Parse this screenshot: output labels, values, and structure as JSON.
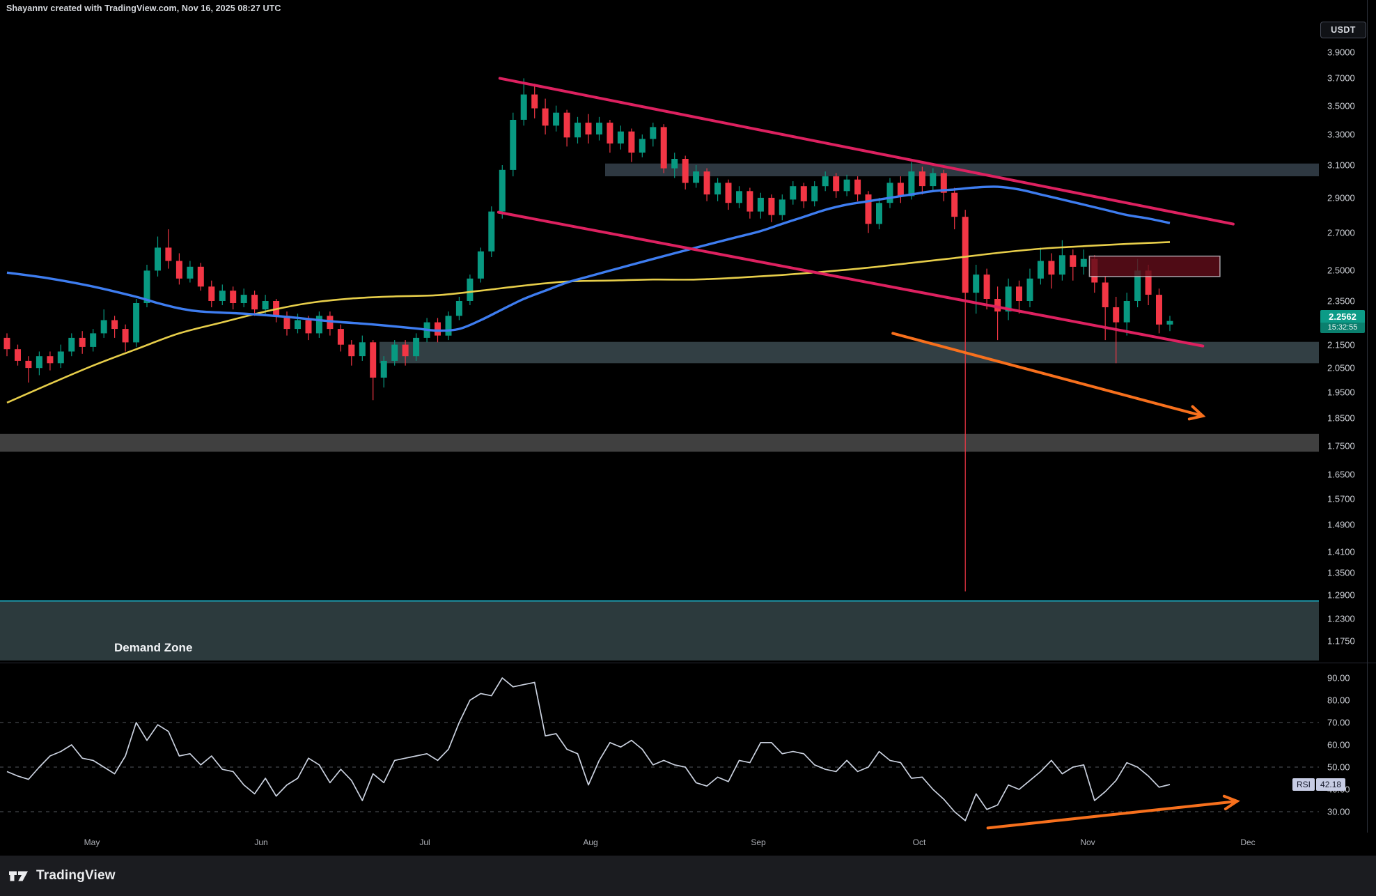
{
  "header": {
    "attribution": "Shayannv created with TradingView.com, Nov 16, 2025 08:27 UTC",
    "currency_button": "USDT"
  },
  "footer": {
    "brand": "TradingView"
  },
  "colors": {
    "background": "#000000",
    "candle_up": "#089981",
    "candle_down": "#F23645",
    "ma_blue": "#3E7DF0",
    "ma_yellow": "#E7CE4A",
    "trendline_pink": "#DD2160",
    "arrow_orange": "#F7701D",
    "zone_gray": "#323D47",
    "zone_teal": "#36444A",
    "zone_light_gray": "#454545",
    "demand_fill": "#2C3A3D",
    "demand_border": "#1C9FB4",
    "supply_fill": "rgba(96,14,26,0.82)",
    "supply_border": "rgba(225,228,235,0.7)",
    "rsi_line": "#CBD2E0",
    "rsi_grid": "#54575E",
    "badge_bg": "#0C9B87",
    "badge_bg_countdown": "#0A7F6E",
    "chip_bg": "#C7CCE4",
    "axis_text": "#CDD0D6"
  },
  "chart_data": {
    "type": "candlestick_with_rsi",
    "price_scale": "logarithmic",
    "quote_currency": "USDT",
    "current_price": {
      "value": "2.2562",
      "countdown": "15:32:55"
    },
    "price_axis_ticks": [
      "3.9000",
      "3.7000",
      "3.5000",
      "3.3000",
      "3.1000",
      "2.9000",
      "2.7000",
      "2.5000",
      "2.3500",
      "2.1500",
      "2.0500",
      "1.9500",
      "1.8500",
      "1.7500",
      "1.6500",
      "1.5700",
      "1.4900",
      "1.4100",
      "1.3500",
      "1.2900",
      "1.2300",
      "1.1750"
    ],
    "months": [
      {
        "label": "May",
        "x": 0.0697
      },
      {
        "label": "Jun",
        "x": 0.198
      },
      {
        "label": "Jul",
        "x": 0.3221
      },
      {
        "label": "Aug",
        "x": 0.4477
      },
      {
        "label": "Sep",
        "x": 0.575
      },
      {
        "label": "Oct",
        "x": 0.6969
      },
      {
        "label": "Nov",
        "x": 0.8247
      },
      {
        "label": "Dec",
        "x": 0.9461
      }
    ],
    "candles_note": "two-day OHLC candles, mid-April through Nov 16",
    "candles": [
      [
        2.18,
        2.2,
        2.1,
        2.13
      ],
      [
        2.13,
        2.15,
        2.06,
        2.08
      ],
      [
        2.08,
        2.1,
        1.99,
        2.05
      ],
      [
        2.05,
        2.12,
        2.02,
        2.1
      ],
      [
        2.1,
        2.12,
        2.04,
        2.07
      ],
      [
        2.07,
        2.15,
        2.05,
        2.12
      ],
      [
        2.12,
        2.2,
        2.1,
        2.18
      ],
      [
        2.18,
        2.21,
        2.11,
        2.14
      ],
      [
        2.14,
        2.22,
        2.12,
        2.2
      ],
      [
        2.2,
        2.31,
        2.18,
        2.26
      ],
      [
        2.26,
        2.28,
        2.18,
        2.22
      ],
      [
        2.22,
        2.24,
        2.12,
        2.16
      ],
      [
        2.16,
        2.36,
        2.14,
        2.34
      ],
      [
        2.34,
        2.53,
        2.32,
        2.5
      ],
      [
        2.5,
        2.68,
        2.47,
        2.62
      ],
      [
        2.62,
        2.72,
        2.51,
        2.55
      ],
      [
        2.55,
        2.59,
        2.43,
        2.46
      ],
      [
        2.46,
        2.55,
        2.44,
        2.52
      ],
      [
        2.52,
        2.54,
        2.4,
        2.42
      ],
      [
        2.42,
        2.45,
        2.32,
        2.35
      ],
      [
        2.35,
        2.43,
        2.33,
        2.4
      ],
      [
        2.4,
        2.42,
        2.31,
        2.34
      ],
      [
        2.34,
        2.41,
        2.32,
        2.38
      ],
      [
        2.38,
        2.4,
        2.28,
        2.31
      ],
      [
        2.31,
        2.38,
        2.29,
        2.35
      ],
      [
        2.35,
        2.36,
        2.25,
        2.28
      ],
      [
        2.28,
        2.3,
        2.19,
        2.22
      ],
      [
        2.22,
        2.29,
        2.2,
        2.26
      ],
      [
        2.26,
        2.28,
        2.17,
        2.2
      ],
      [
        2.2,
        2.3,
        2.18,
        2.28
      ],
      [
        2.28,
        2.3,
        2.19,
        2.22
      ],
      [
        2.22,
        2.24,
        2.12,
        2.15
      ],
      [
        2.15,
        2.17,
        2.06,
        2.1
      ],
      [
        2.1,
        2.19,
        2.08,
        2.16
      ],
      [
        2.16,
        2.17,
        1.92,
        2.01
      ],
      [
        2.01,
        2.1,
        1.97,
        2.08
      ],
      [
        2.08,
        2.17,
        2.06,
        2.15
      ],
      [
        2.15,
        2.17,
        2.06,
        2.1
      ],
      [
        2.1,
        2.2,
        2.08,
        2.18
      ],
      [
        2.18,
        2.27,
        2.16,
        2.25
      ],
      [
        2.25,
        2.27,
        2.16,
        2.19
      ],
      [
        2.19,
        2.3,
        2.17,
        2.28
      ],
      [
        2.28,
        2.37,
        2.26,
        2.35
      ],
      [
        2.35,
        2.48,
        2.33,
        2.46
      ],
      [
        2.46,
        2.62,
        2.44,
        2.6
      ],
      [
        2.6,
        2.85,
        2.57,
        2.82
      ],
      [
        2.82,
        3.1,
        2.78,
        3.07
      ],
      [
        3.07,
        3.45,
        3.03,
        3.4
      ],
      [
        3.4,
        3.7,
        3.36,
        3.58
      ],
      [
        3.58,
        3.66,
        3.41,
        3.48
      ],
      [
        3.48,
        3.55,
        3.3,
        3.36
      ],
      [
        3.36,
        3.5,
        3.32,
        3.45
      ],
      [
        3.45,
        3.47,
        3.22,
        3.28
      ],
      [
        3.28,
        3.42,
        3.24,
        3.38
      ],
      [
        3.38,
        3.44,
        3.24,
        3.3
      ],
      [
        3.3,
        3.42,
        3.26,
        3.38
      ],
      [
        3.38,
        3.4,
        3.18,
        3.24
      ],
      [
        3.24,
        3.36,
        3.2,
        3.32
      ],
      [
        3.32,
        3.34,
        3.12,
        3.18
      ],
      [
        3.18,
        3.3,
        3.15,
        3.27
      ],
      [
        3.27,
        3.38,
        3.22,
        3.35
      ],
      [
        3.35,
        3.37,
        3.05,
        3.08
      ],
      [
        3.08,
        3.18,
        3.02,
        3.14
      ],
      [
        3.14,
        3.16,
        2.95,
        2.99
      ],
      [
        2.99,
        3.1,
        2.96,
        3.06
      ],
      [
        3.06,
        3.08,
        2.88,
        2.92
      ],
      [
        2.92,
        3.02,
        2.88,
        2.99
      ],
      [
        2.99,
        3.01,
        2.83,
        2.87
      ],
      [
        2.87,
        2.97,
        2.84,
        2.94
      ],
      [
        2.94,
        2.96,
        2.78,
        2.82
      ],
      [
        2.82,
        2.93,
        2.78,
        2.9
      ],
      [
        2.9,
        2.92,
        2.76,
        2.8
      ],
      [
        2.8,
        2.92,
        2.77,
        2.89
      ],
      [
        2.89,
        3.0,
        2.86,
        2.97
      ],
      [
        2.97,
        2.99,
        2.84,
        2.88
      ],
      [
        2.88,
        3.0,
        2.85,
        2.97
      ],
      [
        2.97,
        3.06,
        2.94,
        3.03
      ],
      [
        3.03,
        3.05,
        2.9,
        2.94
      ],
      [
        2.94,
        3.04,
        2.91,
        3.01
      ],
      [
        3.01,
        3.03,
        2.88,
        2.92
      ],
      [
        2.92,
        2.94,
        2.7,
        2.75
      ],
      [
        2.75,
        2.9,
        2.72,
        2.87
      ],
      [
        2.87,
        3.02,
        2.84,
        2.99
      ],
      [
        2.99,
        3.03,
        2.87,
        2.91
      ],
      [
        2.91,
        3.12,
        2.89,
        3.06
      ],
      [
        3.06,
        3.09,
        2.92,
        2.97
      ],
      [
        2.97,
        3.08,
        2.94,
        3.05
      ],
      [
        3.05,
        3.07,
        2.88,
        2.93
      ],
      [
        2.93,
        2.96,
        2.72,
        2.79
      ],
      [
        2.79,
        2.83,
        1.3,
        2.39
      ],
      [
        2.39,
        2.53,
        2.29,
        2.48
      ],
      [
        2.48,
        2.51,
        2.31,
        2.36
      ],
      [
        2.36,
        2.42,
        2.17,
        2.3
      ],
      [
        2.3,
        2.46,
        2.26,
        2.42
      ],
      [
        2.42,
        2.45,
        2.29,
        2.35
      ],
      [
        2.35,
        2.51,
        2.32,
        2.46
      ],
      [
        2.46,
        2.62,
        2.43,
        2.55
      ],
      [
        2.55,
        2.59,
        2.41,
        2.48
      ],
      [
        2.48,
        2.66,
        2.45,
        2.58
      ],
      [
        2.58,
        2.61,
        2.45,
        2.52
      ],
      [
        2.52,
        2.61,
        2.48,
        2.56
      ],
      [
        2.56,
        2.58,
        2.39,
        2.44
      ],
      [
        2.44,
        2.47,
        2.17,
        2.32
      ],
      [
        2.32,
        2.37,
        2.07,
        2.25
      ],
      [
        2.25,
        2.39,
        2.19,
        2.35
      ],
      [
        2.35,
        2.56,
        2.32,
        2.5
      ],
      [
        2.5,
        2.53,
        2.33,
        2.38
      ],
      [
        2.38,
        2.41,
        2.2,
        2.24
      ],
      [
        2.24,
        2.28,
        2.21,
        2.2562
      ]
    ],
    "ma_blue_anchors": [
      [
        0,
        2.49
      ],
      [
        4,
        2.46
      ],
      [
        8,
        2.42
      ],
      [
        12,
        2.37
      ],
      [
        14,
        2.34
      ],
      [
        16,
        2.315
      ],
      [
        18,
        2.3
      ],
      [
        22,
        2.29
      ],
      [
        26,
        2.275
      ],
      [
        30,
        2.255
      ],
      [
        34,
        2.24
      ],
      [
        38,
        2.222
      ],
      [
        40,
        2.212
      ],
      [
        42,
        2.22
      ],
      [
        44,
        2.26
      ],
      [
        46,
        2.31
      ],
      [
        48,
        2.36
      ],
      [
        50,
        2.4
      ],
      [
        52,
        2.44
      ],
      [
        54,
        2.47
      ],
      [
        56,
        2.5
      ],
      [
        58,
        2.53
      ],
      [
        60,
        2.56
      ],
      [
        62,
        2.59
      ],
      [
        64,
        2.62
      ],
      [
        66,
        2.65
      ],
      [
        68,
        2.68
      ],
      [
        70,
        2.71
      ],
      [
        72,
        2.75
      ],
      [
        74,
        2.79
      ],
      [
        76,
        2.83
      ],
      [
        78,
        2.86
      ],
      [
        80,
        2.88
      ],
      [
        82,
        2.9
      ],
      [
        84,
        2.92
      ],
      [
        86,
        2.94
      ],
      [
        88,
        2.95
      ],
      [
        90,
        2.962
      ],
      [
        92,
        2.966
      ],
      [
        94,
        2.95
      ],
      [
        96,
        2.92
      ],
      [
        98,
        2.89
      ],
      [
        100,
        2.86
      ],
      [
        102,
        2.83
      ],
      [
        104,
        2.8
      ],
      [
        106,
        2.78
      ],
      [
        108,
        2.755
      ]
    ],
    "ma_yellow_anchors": [
      [
        0,
        1.91
      ],
      [
        4,
        1.985
      ],
      [
        8,
        2.06
      ],
      [
        12,
        2.13
      ],
      [
        16,
        2.2
      ],
      [
        20,
        2.25
      ],
      [
        24,
        2.3
      ],
      [
        28,
        2.34
      ],
      [
        32,
        2.362
      ],
      [
        36,
        2.372
      ],
      [
        40,
        2.378
      ],
      [
        44,
        2.4
      ],
      [
        48,
        2.425
      ],
      [
        52,
        2.445
      ],
      [
        56,
        2.45
      ],
      [
        60,
        2.455
      ],
      [
        64,
        2.455
      ],
      [
        68,
        2.465
      ],
      [
        72,
        2.478
      ],
      [
        76,
        2.495
      ],
      [
        80,
        2.515
      ],
      [
        84,
        2.54
      ],
      [
        88,
        2.565
      ],
      [
        92,
        2.592
      ],
      [
        96,
        2.614
      ],
      [
        100,
        2.628
      ],
      [
        104,
        2.64
      ],
      [
        108,
        2.65
      ]
    ],
    "zones": [
      {
        "name": "resistance-zone-3.1",
        "price_top": 3.11,
        "price_bottom": 3.03,
        "x_from": 0.459,
        "x_to": 1,
        "color_key": "zone_gray"
      },
      {
        "name": "support-zone-2.1",
        "price_top": 2.162,
        "price_bottom": 2.07,
        "x_from": 0.288,
        "x_to": 1,
        "color_key": "zone_teal"
      },
      {
        "name": "support-zone-1.75",
        "price_top": 1.792,
        "price_bottom": 1.728,
        "x_from": 0,
        "x_to": 1,
        "color_key": "zone_light_gray"
      }
    ],
    "demand_zone": {
      "label": "Demand Zone",
      "price_top": 1.275,
      "price_bottom": 1.1
    },
    "supply_box": {
      "x_from": 0.826,
      "x_to": 0.925,
      "price_top": 2.575,
      "price_bottom": 2.47
    },
    "trendlines": [
      {
        "name": "descending-channel-upper",
        "x1": 0.379,
        "p1": 3.7,
        "x2": 0.935,
        "p2": 2.749
      },
      {
        "name": "descending-channel-lower",
        "x1": 0.378,
        "p1": 2.816,
        "x2": 0.912,
        "p2": 2.144
      }
    ],
    "price_arrow": {
      "x1": 0.677,
      "p1": 2.2,
      "x2": 0.912,
      "p2": 1.859
    },
    "rsi": {
      "label": "RSI",
      "last_value": "42.18",
      "axis_ticks": [
        "90.00",
        "80.00",
        "70.00",
        "60.00",
        "50.00",
        "40.00",
        "30.00"
      ],
      "dashed_levels": [
        70,
        50,
        30
      ],
      "values": [
        48,
        46,
        44.5,
        50,
        55,
        57,
        60,
        54,
        53,
        50,
        47,
        55,
        70,
        62,
        69,
        66,
        55,
        56,
        51,
        55,
        49,
        48,
        42,
        38,
        45,
        37,
        42,
        45,
        54,
        51,
        43,
        49,
        44,
        35,
        47,
        43,
        53,
        54,
        55,
        56,
        53,
        58,
        70,
        80,
        83,
        82,
        90,
        86,
        87,
        88,
        64,
        65,
        58,
        56,
        42,
        53,
        61,
        59,
        62,
        58,
        51,
        53,
        51,
        50,
        43,
        41.5,
        45.5,
        43.5,
        53,
        52,
        61,
        61,
        56,
        57,
        56,
        51,
        49,
        48,
        53,
        48,
        50,
        57,
        53,
        52,
        45,
        45.5,
        40,
        35.6,
        30,
        26,
        38,
        31,
        33,
        42,
        40,
        44,
        48,
        53,
        47,
        50,
        51,
        35,
        39,
        44,
        52,
        50,
        46,
        41,
        42.18
      ],
      "arrow": {
        "x1": 0.749,
        "v1": 22.7,
        "x2": 0.938,
        "v2": 34.7
      }
    }
  }
}
